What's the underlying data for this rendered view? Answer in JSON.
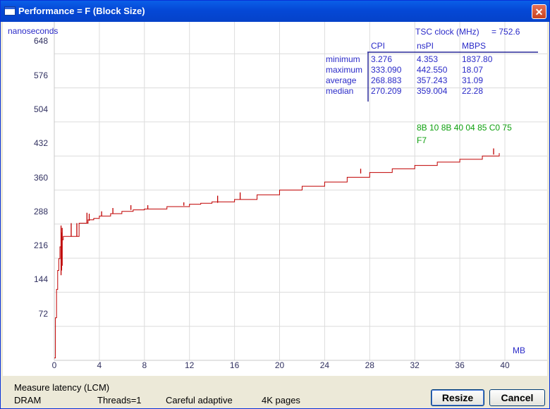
{
  "window": {
    "title": "Performance = F (Block Size)",
    "close_glyph": "✕"
  },
  "chart_data": {
    "type": "line",
    "ylabel": "nanoseconds",
    "xlabel": "MB",
    "xlim": [
      0,
      46
    ],
    "ylim": [
      0,
      720
    ],
    "x_ticks": [
      "0",
      "4",
      "8",
      "12",
      "16",
      "20",
      "24",
      "28",
      "32",
      "36",
      "40"
    ],
    "y_ticks": [
      "72",
      "144",
      "216",
      "288",
      "360",
      "432",
      "504",
      "576",
      "648"
    ],
    "grid": true,
    "series": [
      {
        "color": "#c00000",
        "x": [
          0.0,
          0.1,
          0.2,
          0.3,
          0.4,
          0.5,
          0.6,
          0.8,
          1.0,
          1.5,
          2.0,
          2.2,
          2.5,
          3.0,
          3.5,
          4.0,
          5.0,
          6.0,
          7.0,
          8.0,
          10.0,
          12.0,
          13.0,
          14.0,
          16.0,
          18.0,
          20.0,
          22.0,
          24.0,
          26.0,
          28.0,
          30.0,
          32.0,
          34.0,
          36.0,
          38.0,
          39.5
        ],
        "y": [
          5,
          90,
          150,
          190,
          215,
          240,
          255,
          262,
          262,
          262,
          262,
          290,
          290,
          297,
          300,
          305,
          310,
          315,
          318,
          320,
          325,
          330,
          332,
          335,
          340,
          350,
          360,
          368,
          377,
          387,
          397,
          405,
          412,
          419,
          425,
          432,
          438
        ]
      }
    ],
    "spikes": [
      {
        "x": 0.6,
        "y0": 180,
        "y1": 285
      },
      {
        "x": 0.65,
        "y0": 190,
        "y1": 270
      },
      {
        "x": 0.7,
        "y0": 200,
        "y1": 280
      },
      {
        "x": 1.5,
        "y0": 262,
        "y1": 290
      },
      {
        "x": 2.0,
        "y0": 262,
        "y1": 290
      },
      {
        "x": 2.9,
        "y0": 290,
        "y1": 312
      },
      {
        "x": 3.1,
        "y0": 295,
        "y1": 310
      },
      {
        "x": 4.2,
        "y0": 305,
        "y1": 315
      },
      {
        "x": 5.2,
        "y0": 310,
        "y1": 322
      },
      {
        "x": 6.8,
        "y0": 318,
        "y1": 328
      },
      {
        "x": 8.3,
        "y0": 320,
        "y1": 328
      },
      {
        "x": 11.5,
        "y0": 327,
        "y1": 334
      },
      {
        "x": 14.5,
        "y0": 333,
        "y1": 348
      },
      {
        "x": 16.5,
        "y0": 340,
        "y1": 355
      },
      {
        "x": 27.2,
        "y0": 395,
        "y1": 405
      },
      {
        "x": 39.0,
        "y0": 435,
        "y1": 448
      }
    ]
  },
  "stats": {
    "tsc_label": "TSC clock (MHz)",
    "tsc_value": "=  752.6",
    "columns": [
      "CPI",
      "nsPI",
      "MBPS"
    ],
    "rows": [
      {
        "label": "minimum",
        "cpi": "3.276",
        "nspi": "4.353",
        "mbps": "1837.80"
      },
      {
        "label": "maximum",
        "cpi": "333.090",
        "nspi": "442.550",
        "mbps": "18.07"
      },
      {
        "label": "average",
        "cpi": "268.883",
        "nspi": "357.243",
        "mbps": "31.09"
      },
      {
        "label": "median",
        "cpi": "270.209",
        "nspi": "359.004",
        "mbps": "22.28"
      }
    ],
    "hex_line1": "8B  10  8B  40  04  85   C0  75",
    "hex_line2": "F7"
  },
  "status": {
    "mode": "Measure latency (LCM)",
    "memory": "DRAM",
    "threads": "Threads=1",
    "adaptive": "Careful adaptive",
    "pages": "4K pages"
  },
  "buttons": {
    "resize": "Resize",
    "cancel": "Cancel"
  }
}
